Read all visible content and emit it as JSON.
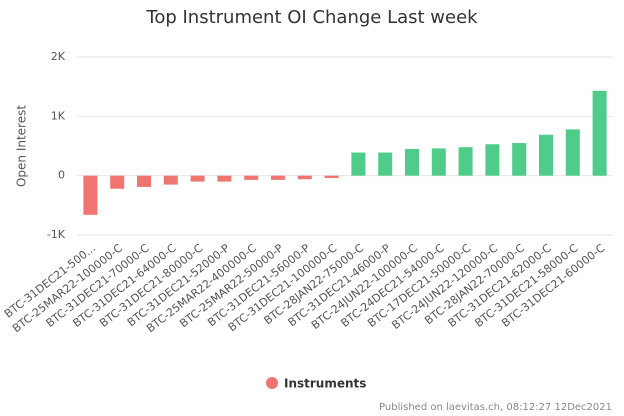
{
  "chart_data": {
    "type": "bar",
    "title": "Top Instrument OI Change Last week",
    "y_label": "Open Interest",
    "categories": [
      "BTC-31DEC21-500...",
      "BTC-25MAR22-100000-C",
      "BTC-31DEC21-70000-C",
      "BTC-31DEC21-64000-C",
      "BTC-31DEC21-80000-C",
      "BTC-31DEC21-52000-P",
      "BTC-25MAR22-400000-C",
      "BTC-25MAR22-50000-P",
      "BTC-31DEC21-56000-P",
      "BTC-31DEC21-100000-C",
      "BTC-28JAN22-75000-C",
      "BTC-31DEC21-46000-P",
      "BTC-24JUN22-100000-C",
      "BTC-24DEC21-54000-C",
      "BTC-17DEC21-50000-C",
      "BTC-24JUN22-120000-C",
      "BTC-28JAN22-70000-C",
      "BTC-31DEC21-62000-C",
      "BTC-31DEC21-58000-C",
      "BTC-31DEC21-60000-C"
    ],
    "series": [
      {
        "name": "Instruments",
        "color": "#f07470",
        "positive_color": "#4fcc8a",
        "values": [
          -660,
          -220,
          -190,
          -150,
          -100,
          -100,
          -70,
          -70,
          -60,
          -40,
          390,
          390,
          450,
          460,
          480,
          530,
          550,
          690,
          780,
          1430
        ]
      }
    ],
    "ylim": [
      -1000,
      2000
    ],
    "yticks": [
      {
        "value": -1000,
        "label": "-1K"
      },
      0,
      {
        "value": 1000,
        "label": "1K"
      },
      {
        "value": 2000,
        "label": "2K"
      }
    ],
    "grid": true,
    "footer": "Published on laevitas.ch, 08:12:27 12Dec2021"
  }
}
